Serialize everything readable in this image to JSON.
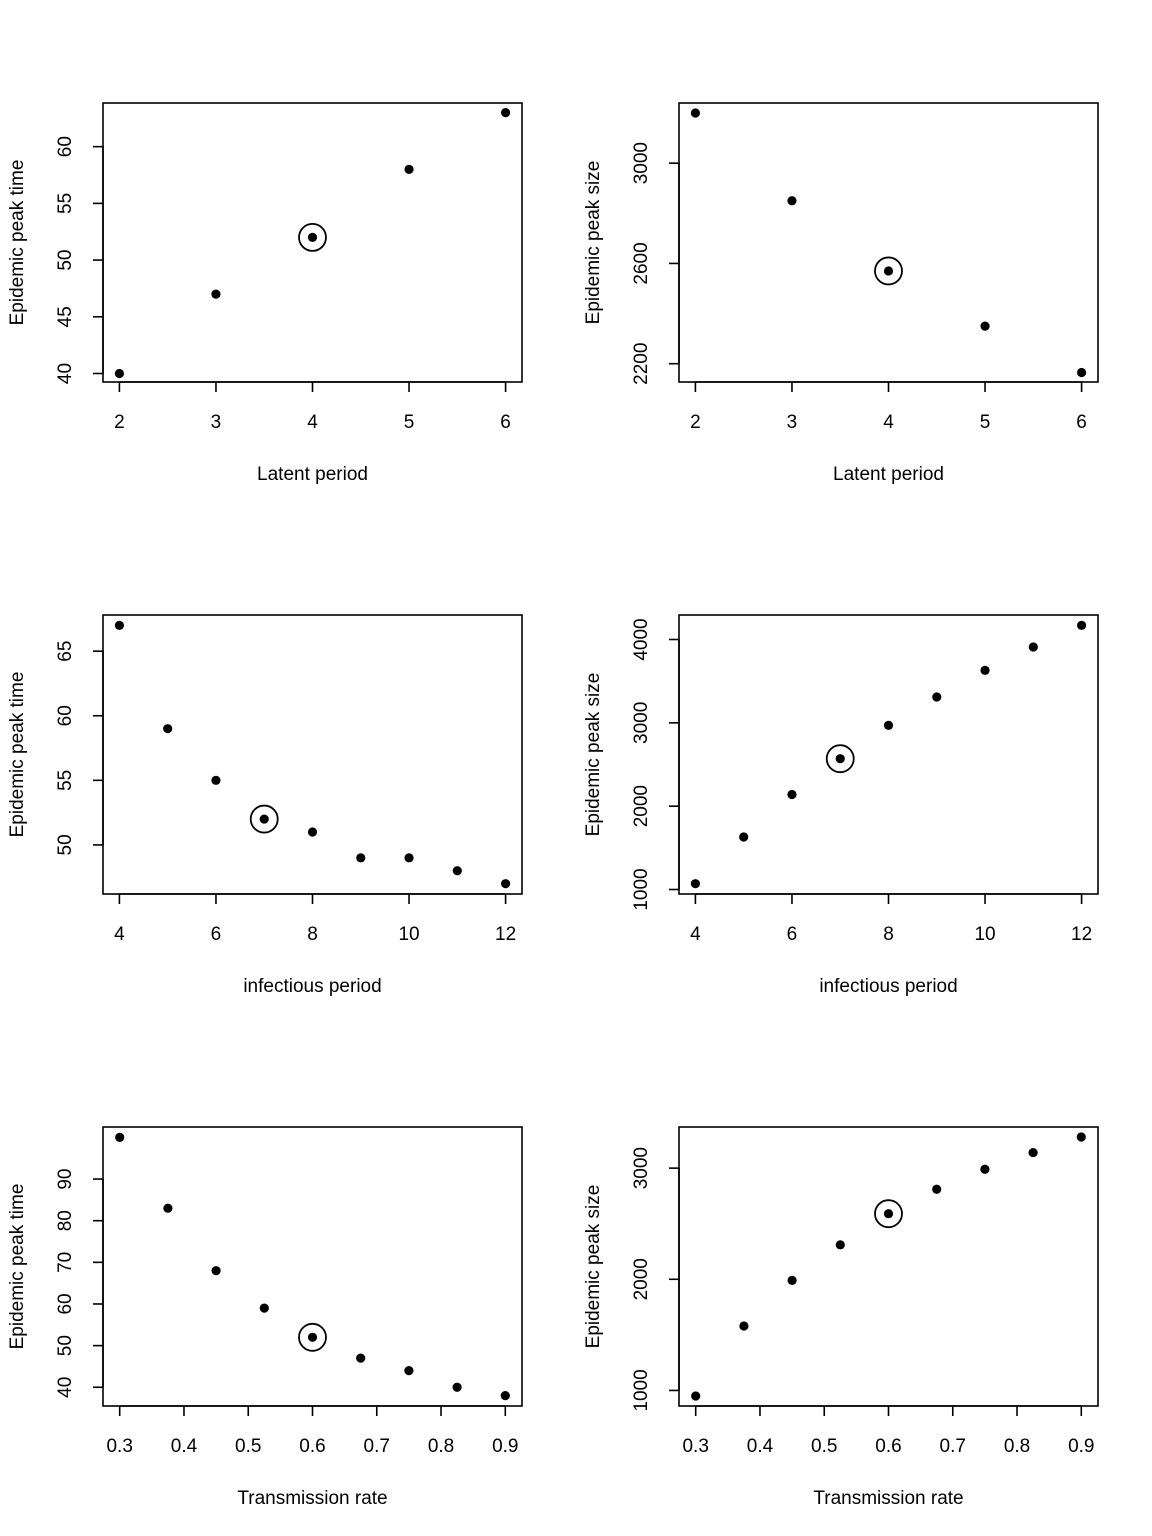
{
  "chart_data": [
    {
      "type": "scatter",
      "xlabel": "Latent period",
      "ylabel": "Epidemic peak time",
      "x": [
        2,
        3,
        4,
        5,
        6
      ],
      "y": [
        40,
        47,
        52,
        58,
        63
      ],
      "highlight_index": 2,
      "xlim": [
        1.83,
        6.17
      ],
      "ylim": [
        39.25,
        63.85
      ],
      "xticks": [
        "2",
        "3",
        "4",
        "5",
        "6"
      ],
      "yticks": [
        "40",
        "45",
        "50",
        "55",
        "60"
      ],
      "grid": false,
      "legend": "none"
    },
    {
      "type": "scatter",
      "xlabel": "Latent period",
      "ylabel": "Epidemic peak size",
      "x": [
        2,
        3,
        4,
        5,
        6
      ],
      "y": [
        3200,
        2850,
        2570,
        2350,
        2165
      ],
      "highlight_index": 2,
      "xlim": [
        1.83,
        6.17
      ],
      "ylim": [
        2127,
        3240
      ],
      "xticks": [
        "2",
        "3",
        "4",
        "5",
        "6"
      ],
      "yticks": [
        "2200",
        "2600",
        "3000"
      ],
      "grid": false,
      "legend": "none"
    },
    {
      "type": "scatter",
      "xlabel": "infectious period",
      "ylabel": "Epidemic peak time",
      "x": [
        4,
        5,
        6,
        7,
        8,
        9,
        10,
        11,
        12
      ],
      "y": [
        67,
        59,
        55,
        52,
        51,
        49,
        49,
        48,
        47
      ],
      "highlight_index": 3,
      "xlim": [
        3.66,
        12.34
      ],
      "ylim": [
        46.2,
        67.8
      ],
      "xticks": [
        "4",
        "6",
        "8",
        "10",
        "12"
      ],
      "yticks": [
        "50",
        "55",
        "60",
        "65"
      ],
      "grid": false,
      "legend": "none"
    },
    {
      "type": "scatter",
      "xlabel": "infectious period",
      "ylabel": "Epidemic peak size",
      "x": [
        4,
        5,
        6,
        7,
        8,
        9,
        10,
        11,
        12
      ],
      "y": [
        1070,
        1630,
        2140,
        2570,
        2970,
        3310,
        3630,
        3910,
        4170
      ],
      "highlight_index": 3,
      "xlim": [
        3.66,
        12.34
      ],
      "ylim": [
        946,
        4294
      ],
      "xticks": [
        "4",
        "6",
        "8",
        "10",
        "12"
      ],
      "yticks": [
        "1000",
        "2000",
        "3000",
        "4000"
      ],
      "grid": false,
      "legend": "none"
    },
    {
      "type": "scatter",
      "xlabel": "Transmission rate",
      "ylabel": "Epidemic peak time",
      "x": [
        0.3,
        0.375,
        0.45,
        0.525,
        0.6,
        0.675,
        0.75,
        0.825,
        0.9
      ],
      "y": [
        100,
        83,
        68,
        59,
        52,
        47,
        44,
        40,
        38
      ],
      "highlight_index": 4,
      "xlim": [
        0.274,
        0.926
      ],
      "ylim": [
        35.5,
        102.5
      ],
      "xticks": [
        "0.3",
        "0.4",
        "0.5",
        "0.6",
        "0.7",
        "0.8",
        "0.9"
      ],
      "yticks": [
        "40",
        "50",
        "60",
        "70",
        "80",
        "90"
      ],
      "grid": false,
      "legend": "none"
    },
    {
      "type": "scatter",
      "xlabel": "Transmission rate",
      "ylabel": "Epidemic peak size",
      "x": [
        0.3,
        0.375,
        0.45,
        0.525,
        0.6,
        0.675,
        0.75,
        0.825,
        0.9
      ],
      "y": [
        950,
        1580,
        1990,
        2310,
        2590,
        2810,
        2990,
        3140,
        3280
      ],
      "highlight_index": 4,
      "xlim": [
        0.274,
        0.926
      ],
      "ylim": [
        860,
        3370
      ],
      "xticks": [
        "0.3",
        "0.4",
        "0.5",
        "0.6",
        "0.7",
        "0.8",
        "0.9"
      ],
      "yticks": [
        "1000",
        "2000",
        "3000"
      ],
      "grid": false,
      "legend": "none"
    }
  ],
  "colors": {
    "points": "#000000",
    "axes": "#000000",
    "background": "#ffffff"
  }
}
